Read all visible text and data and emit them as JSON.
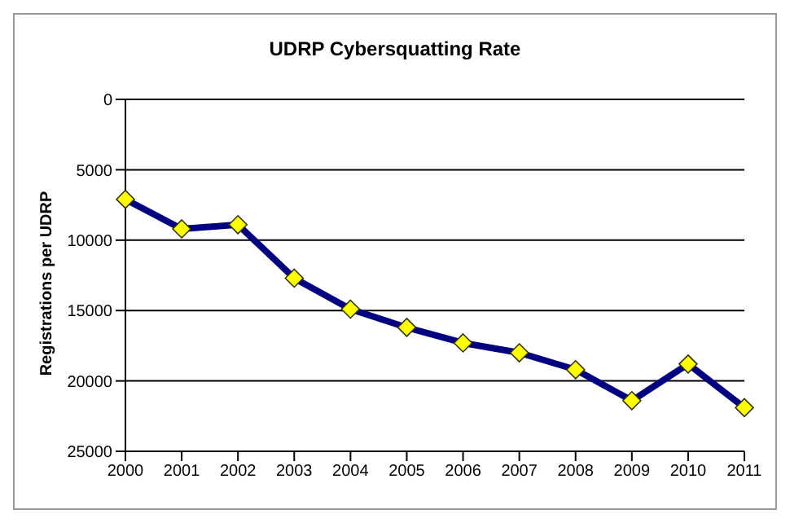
{
  "chart_data": {
    "type": "line",
    "title": "UDRP Cybersquatting Rate",
    "ylabel": "Registrations per UDRP",
    "categories": [
      "2000",
      "2001",
      "2002",
      "2003",
      "2004",
      "2005",
      "2006",
      "2007",
      "2008",
      "2009",
      "2010",
      "2011"
    ],
    "series": [
      {
        "color": "#000080",
        "colors": [
          "#ffff00",
          "#ffff00",
          "#ffff00",
          "#ffff00",
          "#ffff00",
          "#ffff00",
          "#ffff00",
          "#ffff00",
          "#ffff00",
          "#ffff00",
          "#ffff00",
          "#ffff00"
        ],
        "values": [
          7100,
          9200,
          8900,
          12700,
          14900,
          16200,
          17300,
          18000,
          19200,
          21400,
          18800,
          21900
        ]
      }
    ],
    "ylim": [
      25000,
      0
    ],
    "yticks": [
      0,
      5000,
      10000,
      15000,
      20000,
      25000
    ],
    "grid": "y",
    "legend": false,
    "marker": "diamond",
    "line_style": "solid"
  }
}
